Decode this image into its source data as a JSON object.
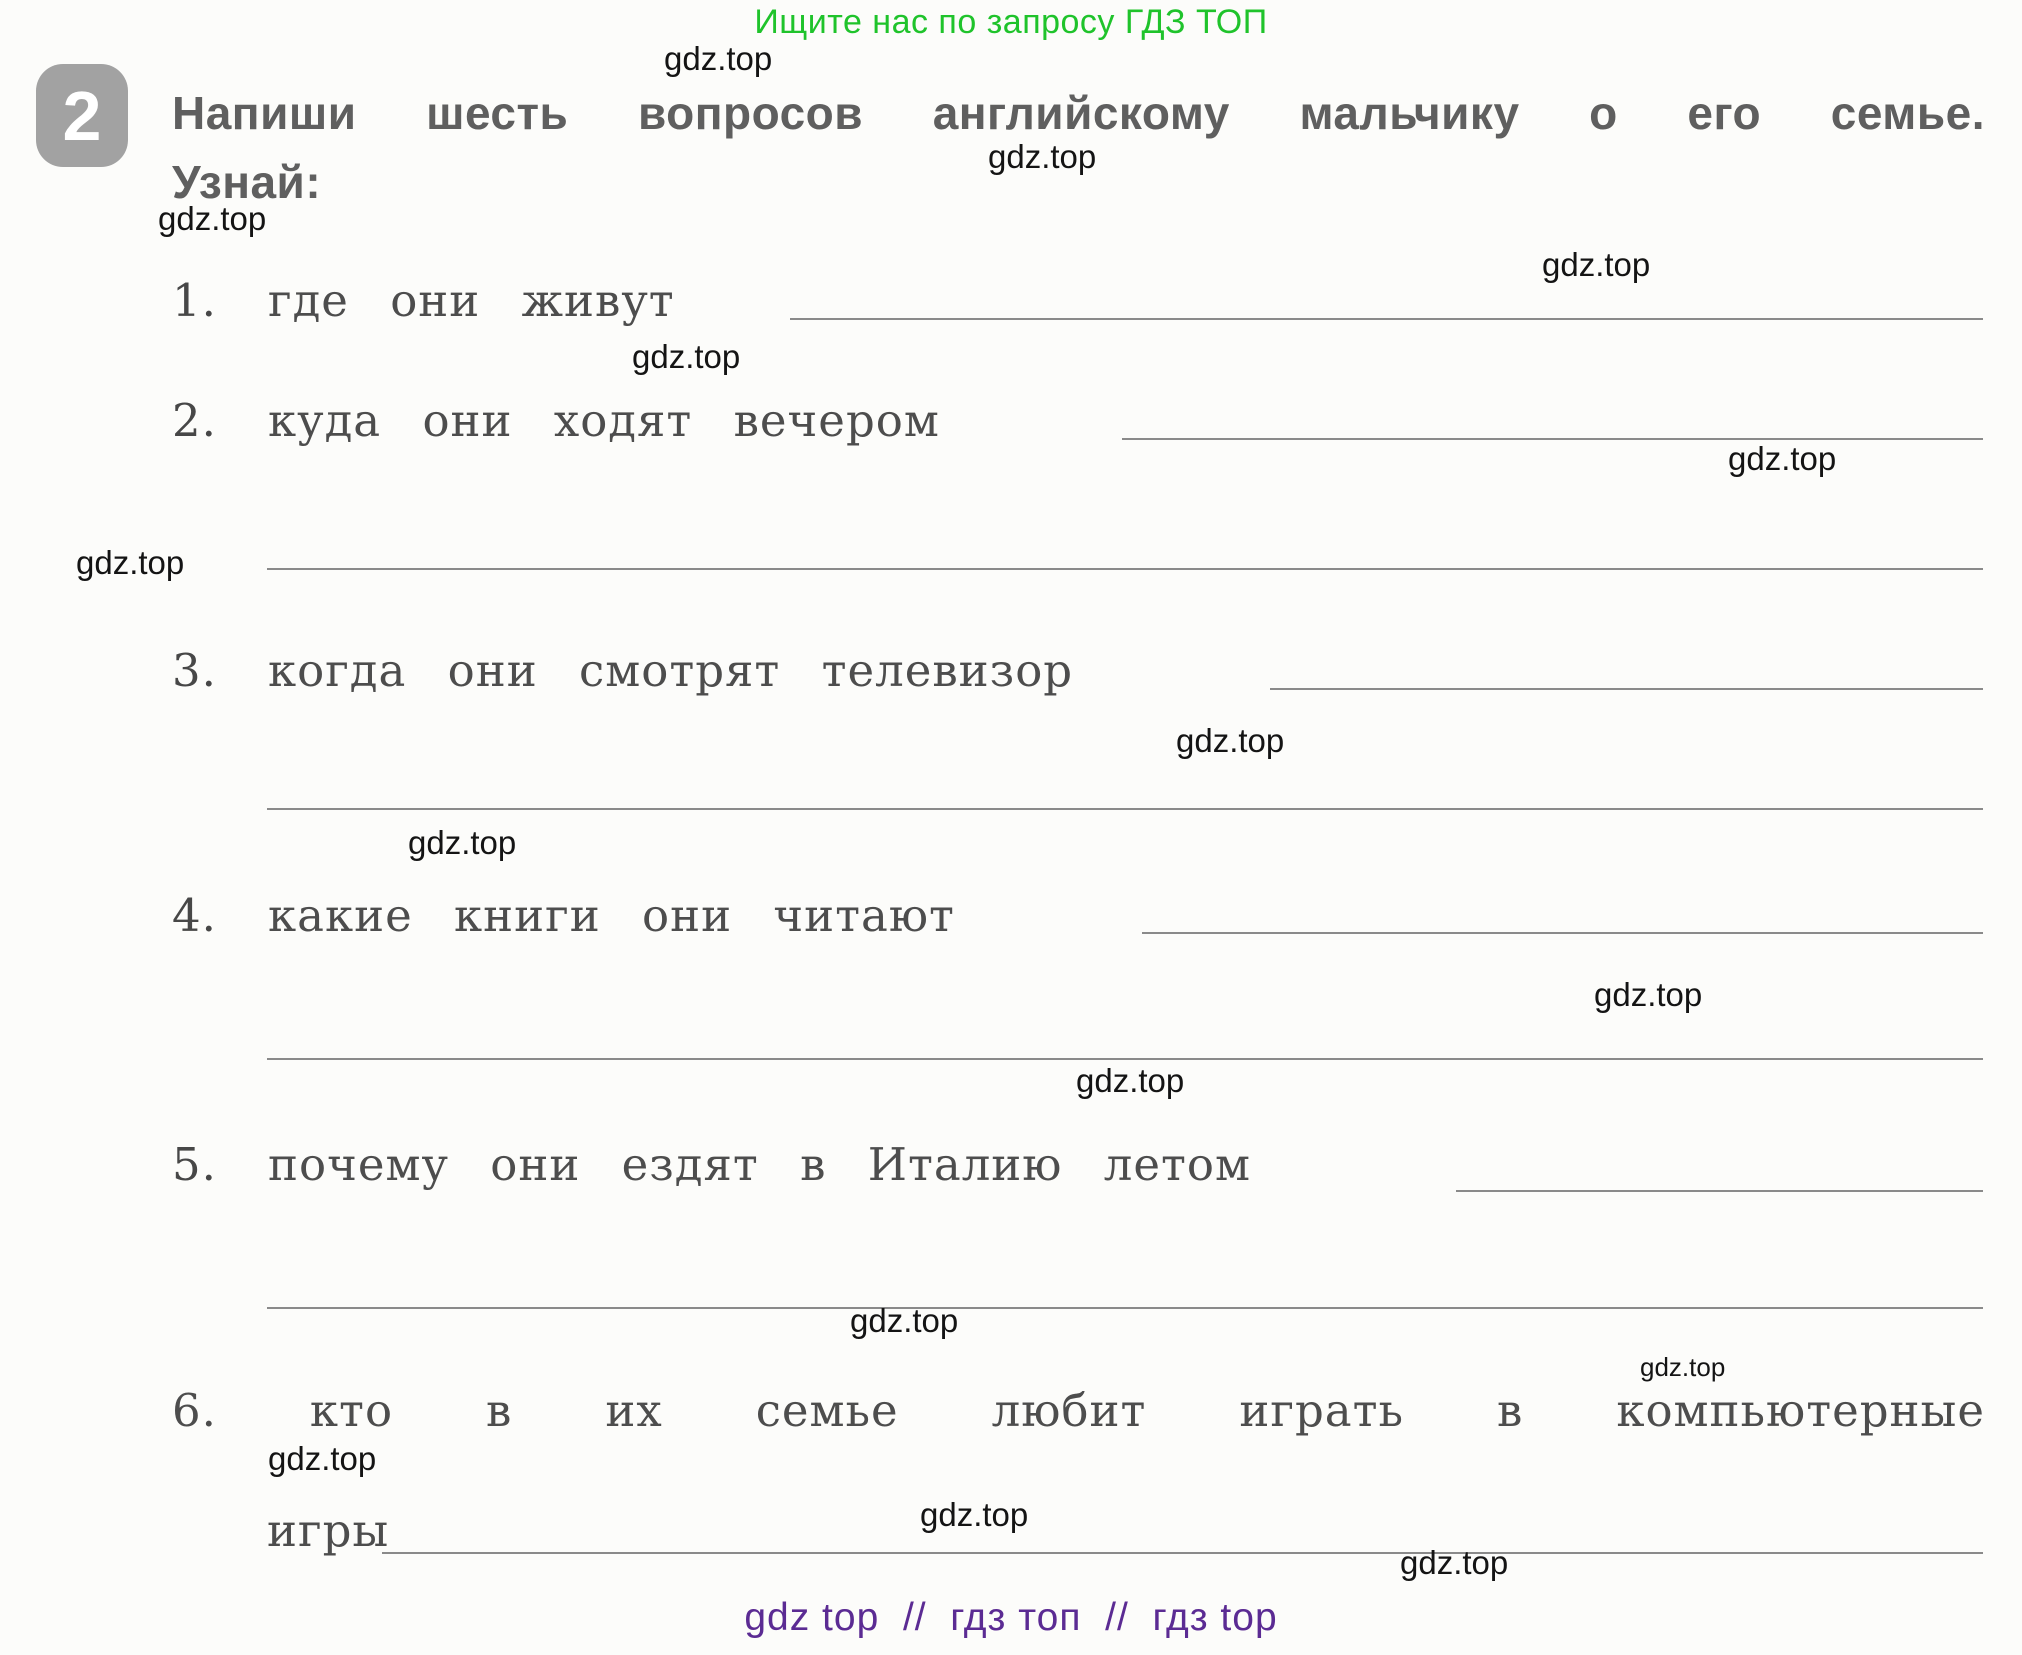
{
  "page": {
    "header": {
      "promo": "Ищите нас по запросу ГДЗ ТОП",
      "promo_color": "#1fc32b"
    },
    "exercise": {
      "number": "2",
      "task_line1": "Напиши шесть вопросов английскому мальчику о его семье.",
      "task_line2": "Узнай:",
      "items": [
        {
          "num": "1.",
          "text": "где они живут"
        },
        {
          "num": "2.",
          "text": "куда они ходят вечером"
        },
        {
          "num": "3.",
          "text": "когда они смотрят телевизор"
        },
        {
          "num": "4.",
          "text": "какие книги они читают"
        },
        {
          "num": "5.",
          "text": "почему они ездят в Италию летом"
        },
        {
          "num": "6.",
          "text": "кто в их семье любит играть в компьютерные",
          "text_cont": "игры"
        }
      ]
    },
    "watermark": "gdz.top",
    "footer": {
      "text": "gdz top  //  гдз топ  //  гдз top",
      "color": "#5b2b93"
    }
  }
}
